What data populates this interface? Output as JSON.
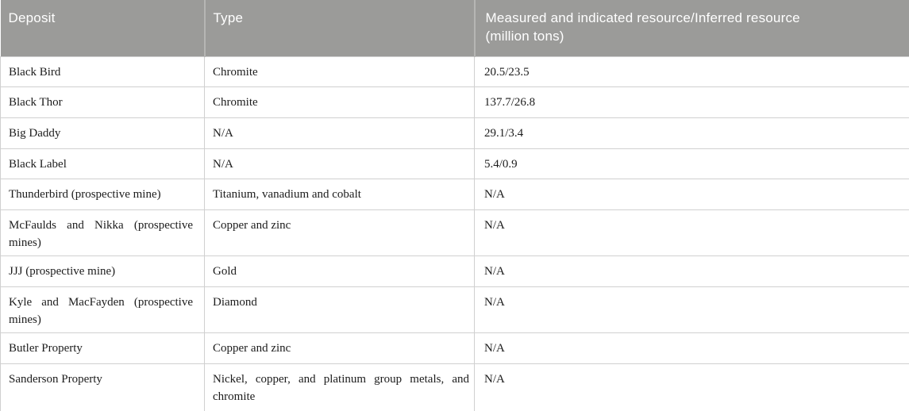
{
  "table": {
    "columns": [
      {
        "label": "Deposit"
      },
      {
        "label": "Type"
      },
      {
        "label": "Measured and indicated resource/Inferred resource (million tons)"
      }
    ],
    "rows": [
      {
        "deposit": "Black Bird",
        "type": "Chromite",
        "resource": "20.5/23.5"
      },
      {
        "deposit": "Black Thor",
        "type": "Chromite",
        "resource": "137.7/26.8"
      },
      {
        "deposit": "Big Daddy",
        "type": "N/A",
        "resource": "29.1/3.4"
      },
      {
        "deposit": "Black Label",
        "type": "N/A",
        "resource": "5.4/0.9"
      },
      {
        "deposit": "Thunderbird (prospective mine)",
        "type": "Titanium, vanadium and cobalt",
        "resource": "N/A"
      },
      {
        "deposit": "McFaulds and Nikka (prospective mines)",
        "type": "Copper and zinc",
        "resource": "N/A"
      },
      {
        "deposit": "JJJ (prospective mine)",
        "type": "Gold",
        "resource": "N/A"
      },
      {
        "deposit": "Kyle and MacFayden (prospective mines)",
        "type": "Diamond",
        "resource": "N/A"
      },
      {
        "deposit": "Butler Property",
        "type": "Copper and zinc",
        "resource": "N/A"
      },
      {
        "deposit": "Sanderson Property",
        "type": "Nickel, copper, and platinum group metals, and chromite",
        "resource": "N/A"
      }
    ],
    "colors": {
      "header_background": "#9b9b99",
      "header_text": "#ffffff",
      "header_divider": "#b6b6b4",
      "body_text": "#1c1c1c",
      "grid_line": "#d0d0d0"
    }
  }
}
